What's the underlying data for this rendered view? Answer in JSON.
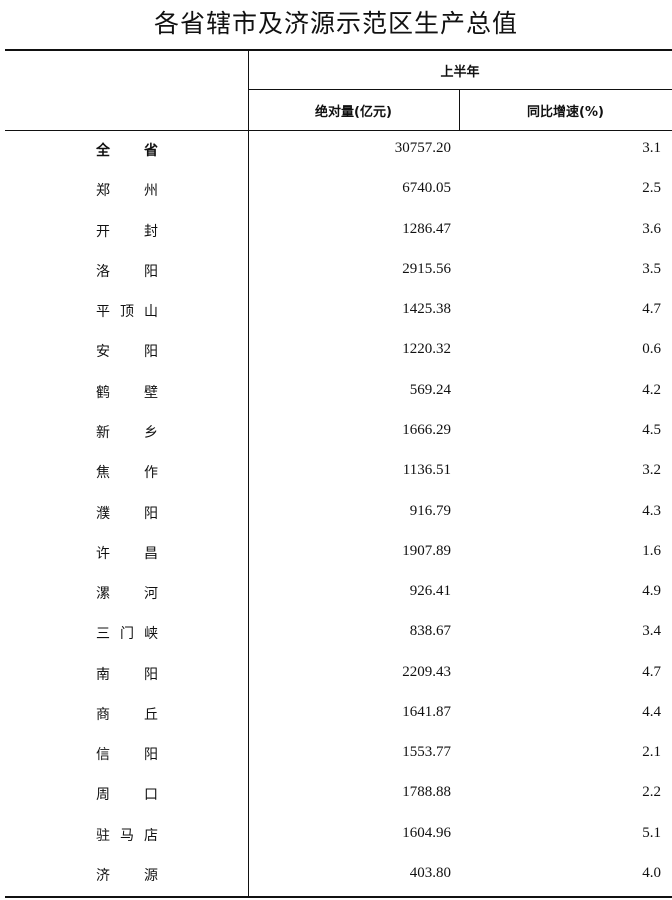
{
  "title": "各省辖市及济源示范区生产总值",
  "header": {
    "period": "上半年",
    "col_value": "绝对量(亿元)",
    "col_growth": "同比增速(%)"
  },
  "rows": [
    {
      "name": "全省",
      "value": "30757.20",
      "growth": "3.1"
    },
    {
      "name": "郑州",
      "value": "6740.05",
      "growth": "2.5"
    },
    {
      "name": "开封",
      "value": "1286.47",
      "growth": "3.6"
    },
    {
      "name": "洛阳",
      "value": "2915.56",
      "growth": "3.5"
    },
    {
      "name": "平顶山",
      "value": "1425.38",
      "growth": "4.7"
    },
    {
      "name": "安阳",
      "value": "1220.32",
      "growth": "0.6"
    },
    {
      "name": "鹤壁",
      "value": "569.24",
      "growth": "4.2"
    },
    {
      "name": "新乡",
      "value": "1666.29",
      "growth": "4.5"
    },
    {
      "name": "焦作",
      "value": "1136.51",
      "growth": "3.2"
    },
    {
      "name": "濮阳",
      "value": "916.79",
      "growth": "4.3"
    },
    {
      "name": "许昌",
      "value": "1907.89",
      "growth": "1.6"
    },
    {
      "name": "漯河",
      "value": "926.41",
      "growth": "4.9"
    },
    {
      "name": "三门峡",
      "value": "838.67",
      "growth": "3.4"
    },
    {
      "name": "南阳",
      "value": "2209.43",
      "growth": "4.7"
    },
    {
      "name": "商丘",
      "value": "1641.87",
      "growth": "4.4"
    },
    {
      "name": "信阳",
      "value": "1553.77",
      "growth": "2.1"
    },
    {
      "name": "周口",
      "value": "1788.88",
      "growth": "2.2"
    },
    {
      "name": "驻马店",
      "value": "1604.96",
      "growth": "5.1"
    },
    {
      "name": "济源",
      "value": "403.80",
      "growth": "4.0"
    }
  ]
}
